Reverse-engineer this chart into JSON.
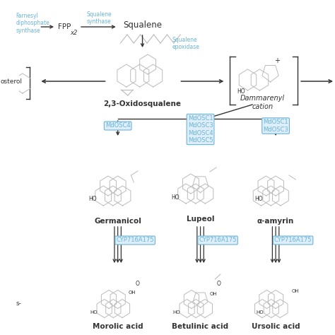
{
  "bg_color": "#ffffff",
  "text_dark": "#333333",
  "text_blue": "#6ab4d8",
  "box_blue_bg": "#ddeef8",
  "box_blue_border": "#6ab4d8",
  "mol_color": "#bbbbbb",
  "mol_lw": 0.7,
  "enzyme_labels": {
    "farnesyl": "Farnesyl\ndiphosphate\nsynthase",
    "squalene_synthase": "Squalene\nsynthase",
    "squalene_epoxidase": "Squalene\nepoxidase",
    "MdOSC4_left": "MdOSC4",
    "MdOSC_center": "MdOSC1\nMdOSC3\nMdOSC4\nMdOSC5",
    "MdOSC_right": "MdOSC1\nMdOSC3",
    "CYP_left": "CYP716A175",
    "CYP_center": "CYP716A175",
    "CYP_right": "CYP716A175"
  },
  "compounds": {
    "FPP": "FPP",
    "x2": "x2",
    "squalene": "Squalene",
    "oxidosqualene": "2,3-Oxidosqualene",
    "dammarenyl": "Dammarenyl\ncation",
    "phytosterol_partial": "osterol",
    "phytosterol_s": "s-",
    "germanicol": "Germanicol",
    "lupeol": "Lupeol",
    "a_amyrin": "α-amyrin",
    "morolic": "Morolic acid",
    "betulinic": "Betulinic acid",
    "ursolic": "Ursolic acid"
  }
}
